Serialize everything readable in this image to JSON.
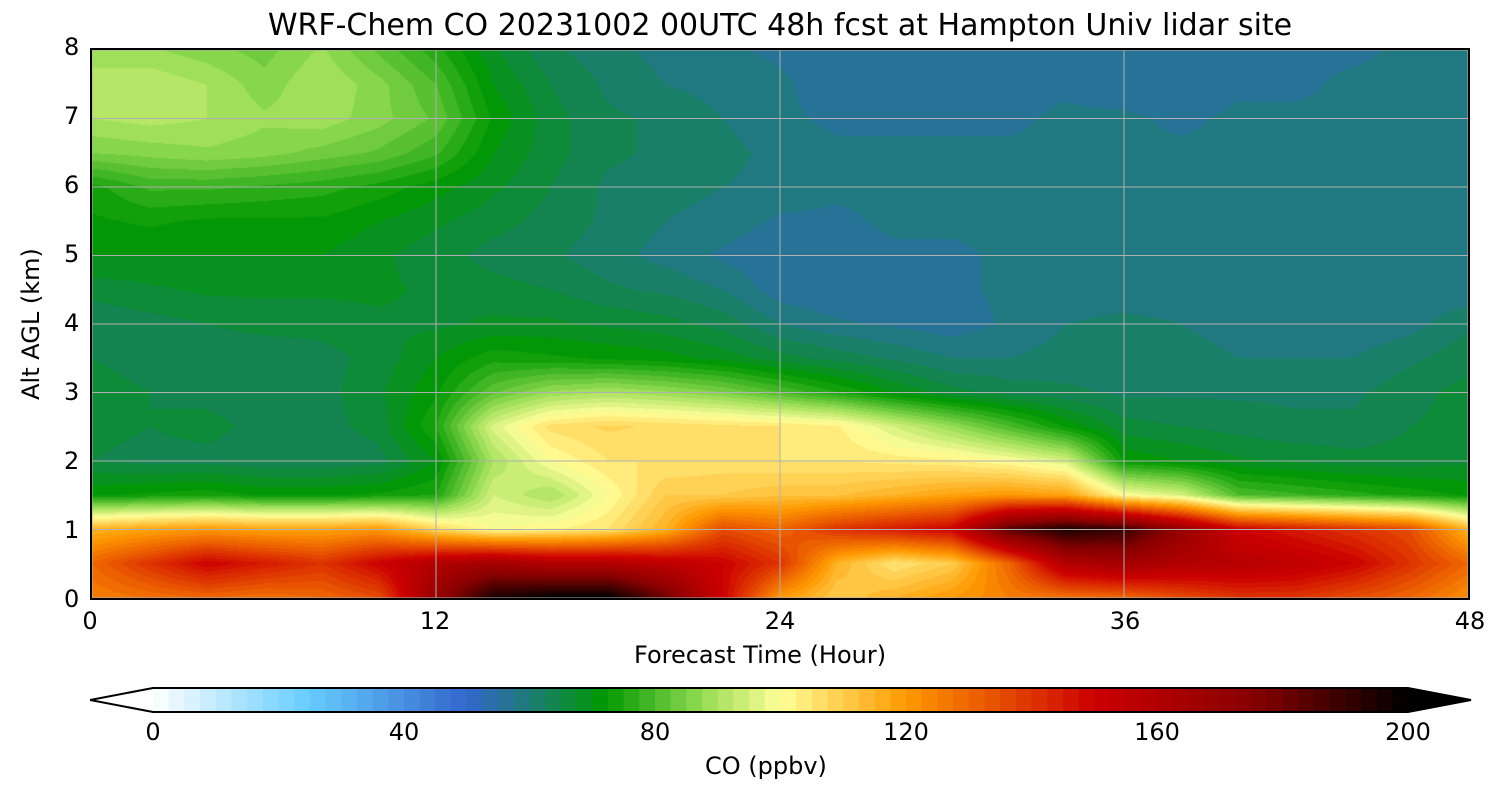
{
  "chart_data": {
    "type": "heatmap",
    "title": "WRF-Chem CO  20231002 00UTC 48h fcst at Hampton Univ lidar site",
    "xlabel": "Forecast Time (Hour)",
    "ylabel": "Alt AGL (km)",
    "xlim": [
      0,
      48
    ],
    "ylim": [
      0,
      8
    ],
    "xticks": [
      "0",
      "12",
      "24",
      "36",
      "48"
    ],
    "yticks": [
      "0",
      "1",
      "2",
      "3",
      "4",
      "5",
      "6",
      "7",
      "8"
    ],
    "grid": true,
    "x": [
      0,
      2,
      4,
      6,
      8,
      10,
      12,
      14,
      16,
      18,
      20,
      22,
      24,
      26,
      28,
      30,
      32,
      34,
      36,
      38,
      40,
      42,
      44,
      46,
      48
    ],
    "y": [
      0,
      0.5,
      1,
      1.5,
      2,
      2.5,
      3,
      3.5,
      4,
      4.5,
      5,
      5.5,
      6,
      6.5,
      7,
      7.5,
      8
    ],
    "z": [
      [
        125,
        128,
        130,
        128,
        130,
        135,
        170,
        195,
        200,
        200,
        180,
        150,
        120,
        110,
        115,
        120,
        125,
        128,
        130,
        135,
        140,
        140,
        135,
        130,
        122
      ],
      [
        130,
        140,
        150,
        145,
        140,
        150,
        160,
        165,
        160,
        160,
        155,
        150,
        140,
        115,
        105,
        110,
        130,
        160,
        165,
        160,
        158,
        155,
        150,
        140,
        130
      ],
      [
        115,
        118,
        120,
        118,
        118,
        120,
        108,
        100,
        102,
        105,
        115,
        135,
        130,
        140,
        145,
        150,
        185,
        195,
        190,
        170,
        150,
        145,
        140,
        135,
        115
      ],
      [
        72,
        73,
        74,
        72,
        72,
        73,
        75,
        95,
        90,
        100,
        110,
        110,
        112,
        112,
        115,
        118,
        120,
        118,
        100,
        95,
        80,
        78,
        76,
        74,
        72
      ],
      [
        65,
        64,
        64,
        63,
        63,
        64,
        70,
        90,
        100,
        105,
        105,
        106,
        105,
        105,
        104,
        103,
        100,
        95,
        72,
        70,
        68,
        67,
        66,
        66,
        67
      ],
      [
        66,
        65,
        66,
        64,
        64,
        66,
        75,
        96,
        106,
        108,
        107,
        106,
        105,
        103,
        95,
        88,
        80,
        72,
        66,
        65,
        64,
        63,
        63,
        65,
        66
      ],
      [
        66,
        65,
        64,
        63,
        64,
        67,
        72,
        82,
        88,
        90,
        88,
        85,
        80,
        75,
        70,
        66,
        64,
        63,
        62,
        62,
        62,
        62,
        62,
        64,
        66
      ],
      [
        65,
        64,
        63,
        63,
        64,
        66,
        70,
        74,
        73,
        72,
        71,
        69,
        66,
        64,
        62,
        60,
        60,
        61,
        62,
        61,
        60,
        60,
        60,
        62,
        64
      ],
      [
        63,
        64,
        65,
        66,
        66,
        67,
        67,
        68,
        68,
        67,
        66,
        64,
        60,
        58,
        57,
        56,
        58,
        60,
        61,
        60,
        59,
        58,
        58,
        59,
        62
      ],
      [
        66,
        67,
        68,
        68,
        68,
        68,
        67,
        66,
        65,
        63,
        62,
        60,
        56,
        55,
        56,
        57,
        58,
        58,
        58,
        58,
        58,
        58,
        58,
        58,
        58
      ],
      [
        70,
        70,
        70,
        70,
        70,
        68,
        66,
        64,
        63,
        61,
        59,
        57,
        55,
        56,
        57,
        57,
        58,
        58,
        58,
        58,
        58,
        58,
        58,
        58,
        58
      ],
      [
        72,
        73,
        72,
        72,
        72,
        70,
        68,
        66,
        64,
        62,
        60,
        59,
        57,
        57,
        58,
        58,
        58,
        58,
        58,
        58,
        58,
        58,
        58,
        58,
        58
      ],
      [
        74,
        78,
        78,
        77,
        76,
        74,
        71,
        68,
        65,
        62,
        61,
        60,
        59,
        58,
        58,
        58,
        58,
        58,
        58,
        58,
        58,
        58,
        58,
        58,
        58
      ],
      [
        85,
        86,
        87,
        86,
        84,
        82,
        78,
        70,
        66,
        63,
        62,
        61,
        59,
        58,
        58,
        58,
        58,
        58,
        58,
        58,
        58,
        58,
        58,
        58,
        58
      ],
      [
        90,
        91,
        90,
        88,
        89,
        86,
        82,
        72,
        66,
        63,
        62,
        60,
        58,
        57,
        57,
        57,
        57,
        58,
        58,
        57,
        58,
        58,
        58,
        58,
        58
      ],
      [
        92,
        92,
        90,
        86,
        90,
        86,
        80,
        70,
        65,
        62,
        60,
        59,
        58,
        56,
        56,
        57,
        57,
        57,
        56,
        56,
        57,
        57,
        58,
        58,
        58
      ],
      [
        88,
        88,
        86,
        84,
        88,
        82,
        76,
        68,
        63,
        61,
        59,
        58,
        57,
        56,
        56,
        56,
        57,
        57,
        56,
        56,
        57,
        57,
        57,
        58,
        58
      ]
    ],
    "colorbar": {
      "label": "CO  (ppbv)",
      "range": [
        0,
        200
      ],
      "step": 2.5,
      "extend": "both",
      "ticks": [
        "0",
        "40",
        "80",
        "120",
        "160",
        "200"
      ]
    },
    "colormap": [
      [
        0,
        "#ffffff"
      ],
      [
        25,
        "#66ccff"
      ],
      [
        50,
        "#3366cc"
      ],
      [
        58,
        "#227788"
      ],
      [
        72,
        "#009900"
      ],
      [
        88,
        "#99dd55"
      ],
      [
        100,
        "#ffff99"
      ],
      [
        120,
        "#ff9900"
      ],
      [
        150,
        "#cc0000"
      ],
      [
        175,
        "#880000"
      ],
      [
        200,
        "#000000"
      ]
    ]
  }
}
